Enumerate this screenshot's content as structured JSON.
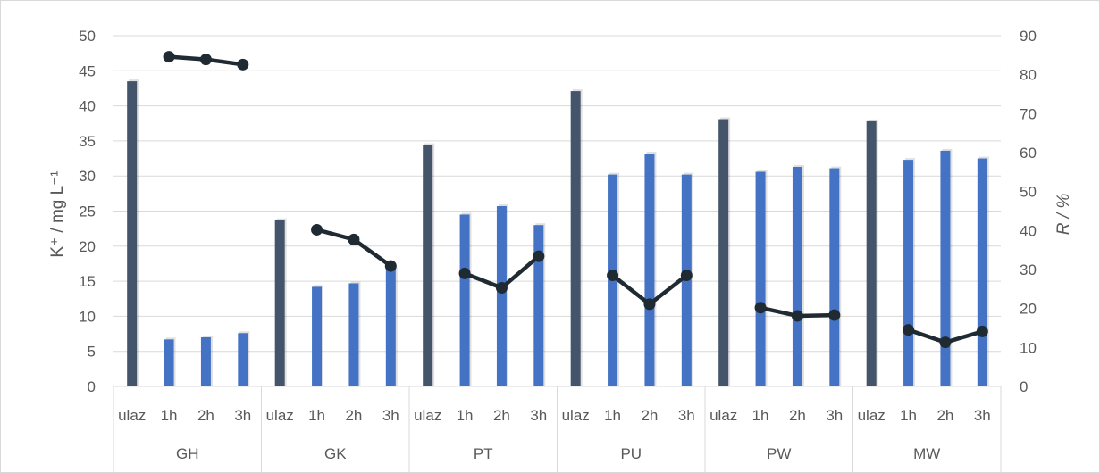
{
  "chart_data": {
    "type": "bar",
    "groups": [
      "GH",
      "GK",
      "PT",
      "PU",
      "PW",
      "MW"
    ],
    "subcategories": [
      "ulaz",
      "1h",
      "2h",
      "3h"
    ],
    "series": [
      {
        "axis": "left",
        "type": "bar",
        "values": [
          [
            43.5,
            6.7,
            7.0,
            7.6
          ],
          [
            23.7,
            14.2,
            14.7,
            16.7
          ],
          [
            34.4,
            24.5,
            25.7,
            23.0
          ],
          [
            42.1,
            30.2,
            33.2,
            30.2
          ],
          [
            38.1,
            30.6,
            31.3,
            31.1
          ],
          [
            37.8,
            32.3,
            33.6,
            32.5
          ]
        ]
      },
      {
        "axis": "right",
        "type": "line",
        "values": [
          [
            null,
            84.6,
            83.9,
            82.6
          ],
          [
            null,
            40.2,
            37.7,
            30.9
          ],
          [
            null,
            29.0,
            25.3,
            33.4
          ],
          [
            null,
            28.5,
            21.1,
            28.5
          ],
          [
            null,
            20.2,
            18.1,
            18.3
          ],
          [
            null,
            14.5,
            11.3,
            14.1
          ]
        ]
      }
    ],
    "ylabel_left": "K⁺ / mg L⁻¹",
    "ylabel_right": "R / %",
    "ylim_left": [
      0,
      50
    ],
    "ylim_right": [
      0,
      90
    ],
    "yticks_left": [
      "0",
      "5",
      "10",
      "15",
      "20",
      "25",
      "30",
      "35",
      "40",
      "45",
      "50"
    ],
    "yticks_right": [
      "0",
      "10",
      "20",
      "30",
      "40",
      "50",
      "60",
      "70",
      "80",
      "90"
    ],
    "grid": true,
    "legend": false,
    "colors": {
      "bar_input": "#44546a",
      "bar_output": "#4472c4",
      "line": "#1f2a33",
      "grid": "#d9d9d9",
      "text": "#595959"
    }
  }
}
